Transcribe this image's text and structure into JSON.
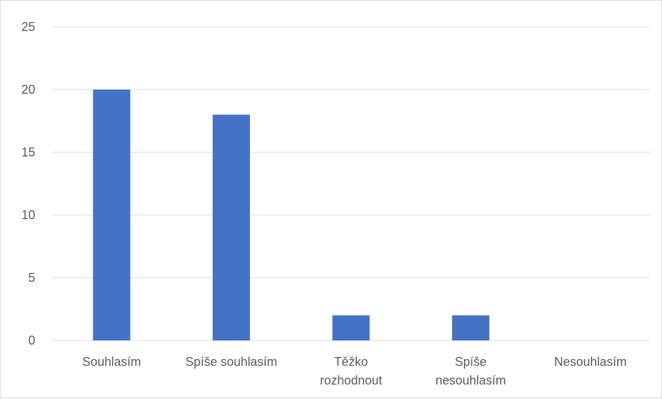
{
  "chart_data": {
    "type": "bar",
    "categories": [
      [
        "Souhlasím"
      ],
      [
        "Spíše souhlasím"
      ],
      [
        "Těžko",
        "rozhodnout"
      ],
      [
        "Spíše",
        "nesouhlasím"
      ],
      [
        "Nesouhlasím"
      ]
    ],
    "values": [
      20,
      18,
      2,
      2,
      0
    ],
    "ylim": [
      0,
      25
    ],
    "yticks": [
      0,
      5,
      10,
      15,
      20,
      25
    ],
    "title": "",
    "xlabel": "",
    "ylabel": "",
    "grid": true,
    "legend": "none",
    "bar_color": "#4472c4",
    "grid_color": "#d9d9d9",
    "text_color": "#595959"
  }
}
